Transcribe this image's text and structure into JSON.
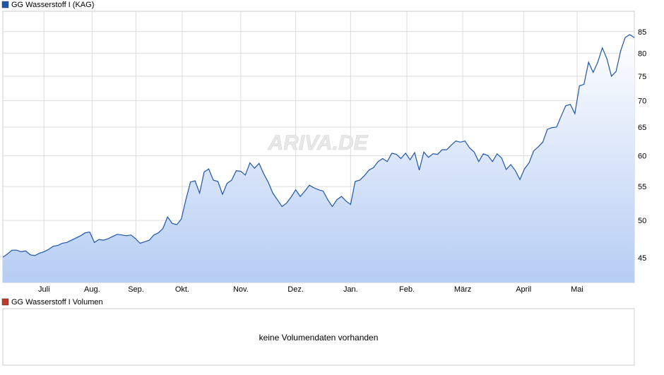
{
  "chart_data": [
    {
      "type": "line",
      "series": [
        {
          "name": "GG Wasserstoff I (KAG)",
          "color": "#1f56a8",
          "values": [
            45.1,
            45.5,
            46.0,
            46.0,
            45.8,
            45.9,
            45.4,
            45.3,
            45.6,
            45.8,
            46.1,
            46.5,
            46.6,
            46.9,
            47.0,
            47.3,
            47.6,
            47.9,
            48.3,
            48.4,
            47.0,
            47.4,
            47.3,
            47.5,
            47.8,
            48.1,
            48.0,
            47.9,
            48.0,
            47.5,
            46.9,
            47.1,
            47.3,
            48.0,
            48.3,
            48.9,
            50.5,
            49.6,
            49.4,
            50.2,
            53.0,
            55.7,
            55.9,
            54.0,
            57.3,
            57.8,
            56.0,
            55.8,
            53.8,
            55.5,
            56.0,
            57.5,
            57.4,
            56.8,
            58.8,
            57.9,
            58.7,
            57.0,
            55.7,
            54.0,
            53.0,
            52.0,
            52.5,
            53.4,
            54.5,
            53.5,
            54.3,
            55.2,
            54.8,
            54.5,
            54.3,
            53.0,
            52.0,
            53.0,
            53.5,
            52.8,
            52.3,
            55.8,
            56.0,
            56.7,
            57.6,
            58.0,
            59.0,
            59.5,
            59.0,
            60.4,
            60.2,
            59.5,
            60.4,
            59.3,
            60.5,
            57.6,
            60.6,
            59.7,
            60.3,
            60.2,
            61.0,
            61.0,
            61.8,
            62.5,
            62.3,
            62.5,
            61.3,
            60.6,
            59.0,
            60.3,
            60.0,
            59.0,
            60.3,
            59.6,
            57.7,
            58.5,
            57.5,
            56.1,
            57.8,
            58.8,
            60.8,
            61.5,
            62.3,
            64.6,
            64.9,
            65.0,
            67.0,
            69.0,
            69.3,
            67.5,
            73.0,
            73.3,
            78.0,
            75.8,
            78.0,
            81.2,
            78.8,
            75.0,
            76.0,
            80.5,
            83.6,
            84.3,
            83.6
          ]
        }
      ],
      "xlim": [
        0,
        138
      ],
      "xticks": [
        {
          "value": 9,
          "label": "Juli"
        },
        {
          "value": 19.5,
          "label": "Aug."
        },
        {
          "value": 29.1,
          "label": "Sep."
        },
        {
          "value": 39.2,
          "label": "Okt."
        },
        {
          "value": 52,
          "label": "Nov."
        },
        {
          "value": 64,
          "label": "Dez."
        },
        {
          "value": 76,
          "label": "Jan."
        },
        {
          "value": 88.3,
          "label": "Feb."
        },
        {
          "value": 100.5,
          "label": "März"
        },
        {
          "value": 113.8,
          "label": "April"
        },
        {
          "value": 125.5,
          "label": "Mai"
        }
      ],
      "ylim": [
        42,
        90
      ],
      "yticks": [
        45,
        50,
        55,
        60,
        65,
        70,
        75,
        80,
        85
      ],
      "log_scale": true,
      "grid": true,
      "watermark": "ARIVA.DE"
    },
    {
      "type": "empty",
      "legend": {
        "name": "GG Wasserstoff I Volumen",
        "color": "#c0392b"
      },
      "message": "keine Volumendaten vorhanden"
    }
  ]
}
